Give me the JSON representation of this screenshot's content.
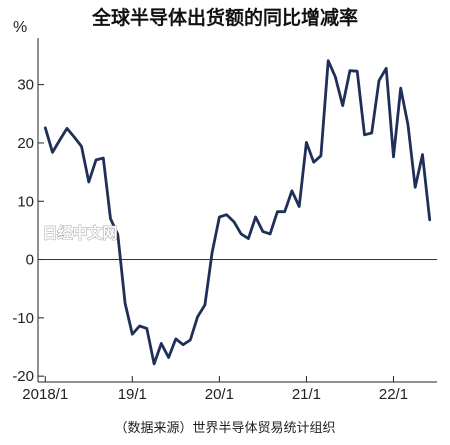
{
  "chart_data": {
    "type": "line",
    "title": "全球半导体出货额的同比增减率",
    "ylabel": "%",
    "source": "（数据来源）世界半导体贸易统计组织",
    "watermark": "日经中文网",
    "ylim": [
      -21,
      38
    ],
    "yticks": [
      30,
      20,
      10,
      0,
      -10,
      -20
    ],
    "xlim": [
      "2017/12",
      "2022/07"
    ],
    "xticks": [
      {
        "at": "2018/01",
        "label": "2018/1"
      },
      {
        "at": "2019/01",
        "label": "19/1"
      },
      {
        "at": "2020/01",
        "label": "20/1"
      },
      {
        "at": "2021/01",
        "label": "21/1"
      },
      {
        "at": "2022/01",
        "label": "22/1"
      }
    ],
    "zero_line": true,
    "line_color": "#1f2f58",
    "series": [
      {
        "x": [
          "2018/01",
          "2018/02",
          "2018/03",
          "2018/04",
          "2018/05",
          "2018/06",
          "2018/07",
          "2018/08",
          "2018/09",
          "2018/10",
          "2018/11",
          "2018/12",
          "2019/01",
          "2019/02",
          "2019/03",
          "2019/04",
          "2019/05",
          "2019/06",
          "2019/07",
          "2019/08",
          "2019/09",
          "2019/10",
          "2019/11",
          "2019/12",
          "2020/01",
          "2020/02",
          "2020/03",
          "2020/04",
          "2020/05",
          "2020/06",
          "2020/07",
          "2020/08",
          "2020/09",
          "2020/10",
          "2020/11",
          "2020/12",
          "2021/01",
          "2021/02",
          "2021/03",
          "2021/04",
          "2021/05",
          "2021/06",
          "2021/07",
          "2021/08",
          "2021/09",
          "2021/10",
          "2021/11",
          "2021/12",
          "2022/01",
          "2022/02",
          "2022/03",
          "2022/04",
          "2022/05",
          "2022/06"
        ],
        "values": [
          22.6,
          18.4,
          20.5,
          22.5,
          21.0,
          19.4,
          13.3,
          17.1,
          17.4,
          7.0,
          4.3,
          -7.5,
          -12.8,
          -11.4,
          -11.8,
          -17.9,
          -14.4,
          -16.8,
          -13.6,
          -14.6,
          -13.8,
          -9.8,
          -7.8,
          1.2,
          7.3,
          7.7,
          6.5,
          4.4,
          3.6,
          7.3,
          4.8,
          4.4,
          8.2,
          8.2,
          11.8,
          9.1,
          20.1,
          16.7,
          17.8,
          34.1,
          31.3,
          26.4,
          32.4,
          32.3,
          21.4,
          21.7,
          30.7,
          32.8,
          17.6,
          29.4,
          23.1,
          12.4,
          18.0,
          6.8
        ]
      }
    ]
  }
}
